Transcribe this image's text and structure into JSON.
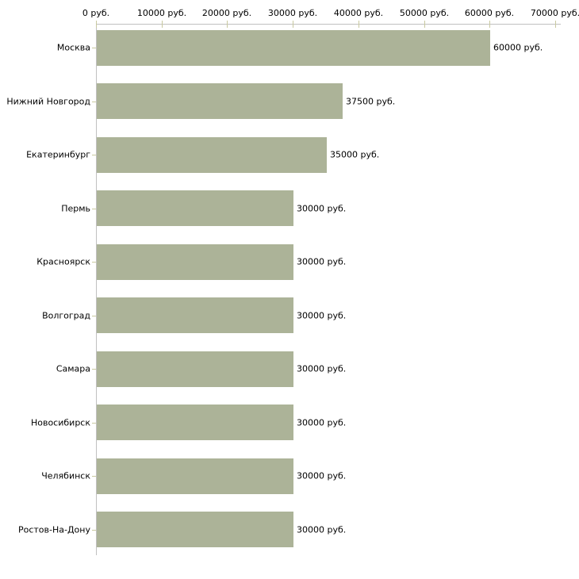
{
  "chart_data": {
    "type": "bar",
    "orientation": "horizontal",
    "title": "",
    "categories": [
      "Москва",
      "Нижний Новгород",
      "Екатеринбург",
      "Пермь",
      "Красноярск",
      "Волгоград",
      "Самара",
      "Новосибирск",
      "Челябинск",
      "Ростов-На-Дону"
    ],
    "values": [
      60000,
      37500,
      35000,
      30000,
      30000,
      30000,
      30000,
      30000,
      30000,
      30000
    ],
    "value_labels": [
      "60000 руб.",
      "37500 руб.",
      "35000 руб.",
      "30000 руб.",
      "30000 руб.",
      "30000 руб.",
      "30000 руб.",
      "30000 руб.",
      "30000 руб.",
      "30000 руб."
    ],
    "x_axis": {
      "position": "top",
      "tick_values": [
        0,
        10000,
        20000,
        30000,
        40000,
        50000,
        60000,
        70000
      ],
      "tick_labels": [
        "0 руб.",
        "10000 руб.",
        "20000 руб.",
        "30000 руб.",
        "40000 руб.",
        "50000 руб.",
        "60000 руб.",
        "70000 руб."
      ],
      "range": [
        0,
        70000
      ],
      "unit": "руб."
    },
    "grid": false,
    "legend": false,
    "colors": {
      "bar": "#acb398",
      "axis_line": "#c0c0c0",
      "tick": "#c9c9a0",
      "text": "#000000",
      "background": "#ffffff"
    }
  }
}
